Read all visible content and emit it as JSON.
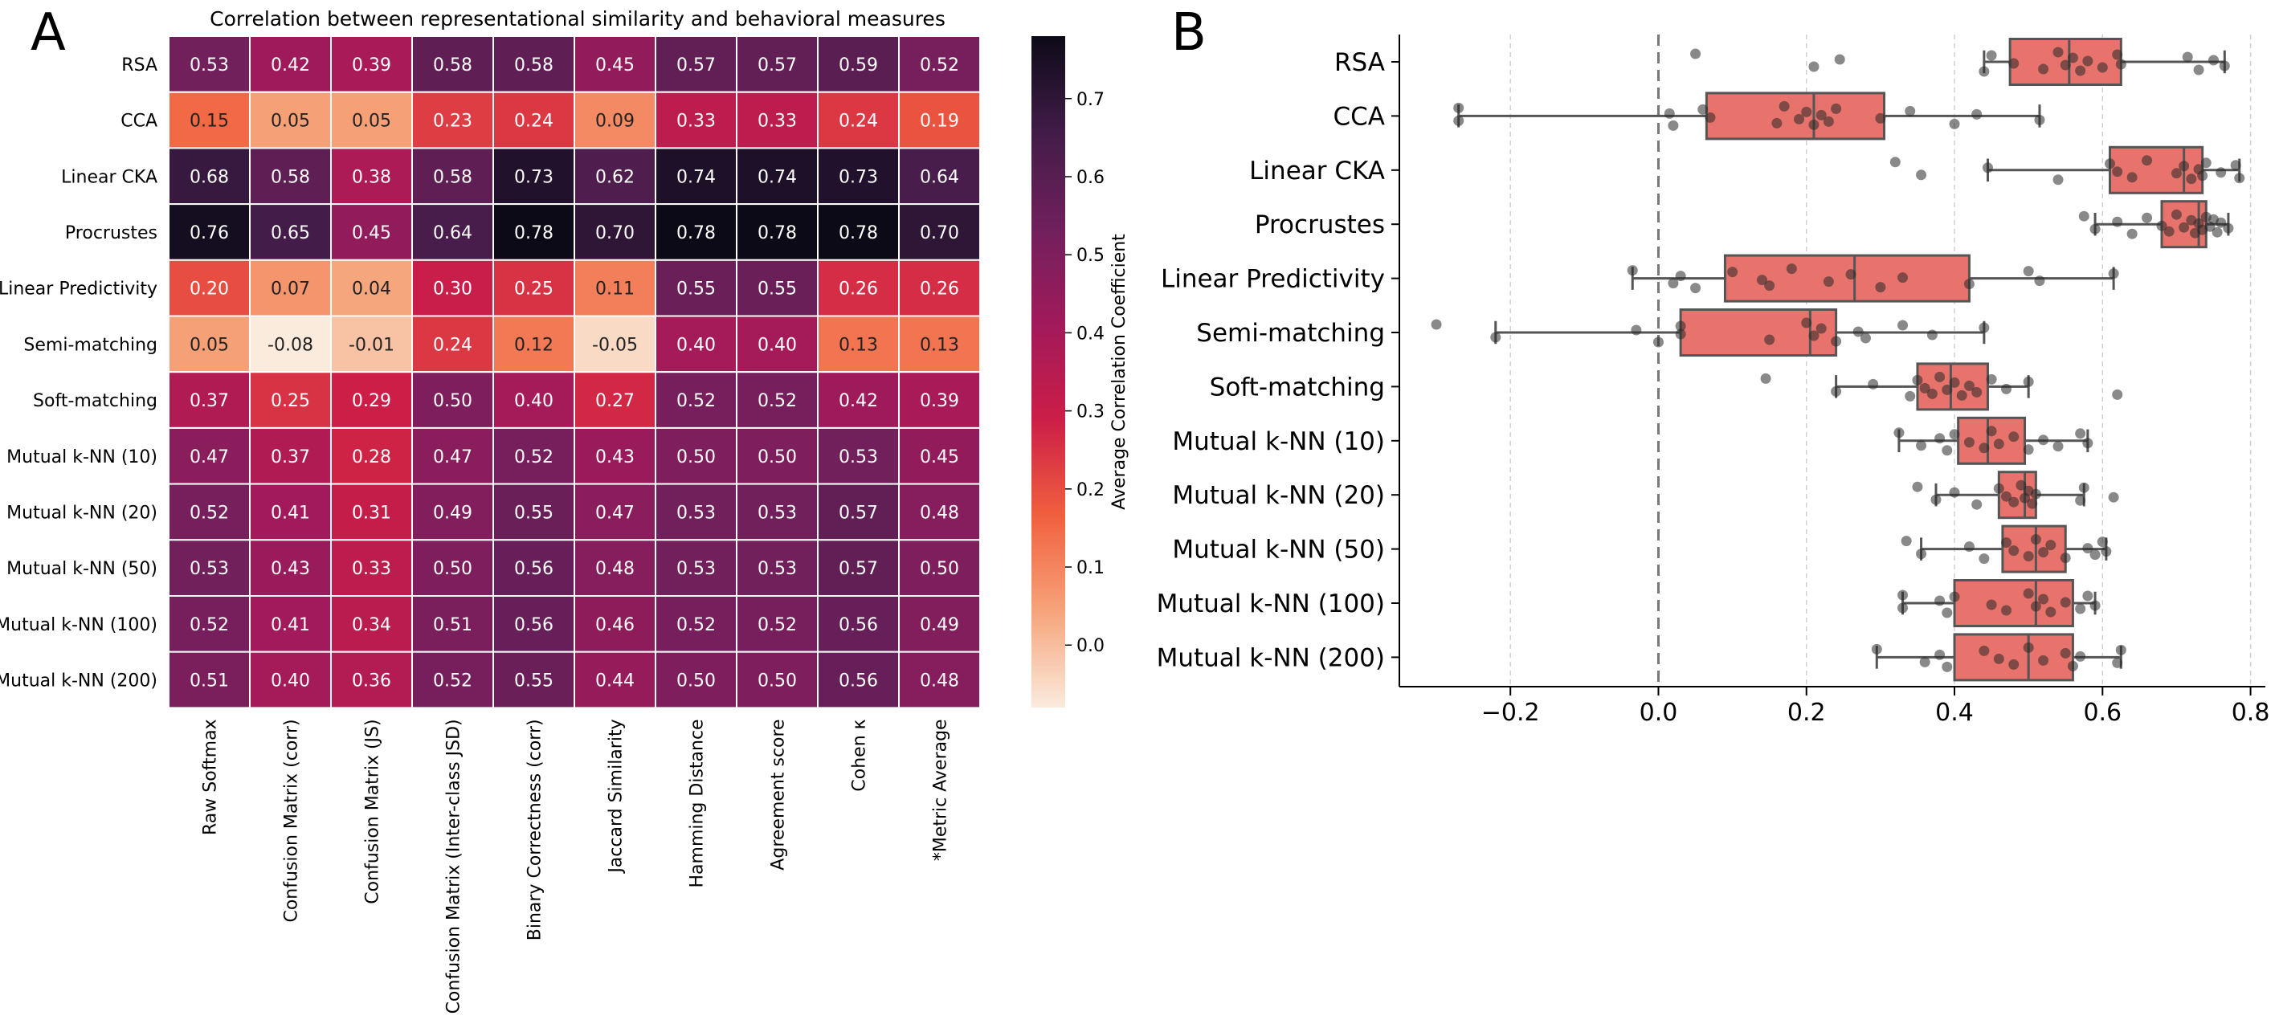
{
  "panels": {
    "a_label": "A",
    "b_label": "B"
  },
  "chart_data": [
    {
      "type": "heatmap",
      "title": "Correlation between representational similarity and behavioral measures",
      "rows": [
        "RSA",
        "CCA",
        "Linear CKA",
        "Procrustes",
        "Linear Predictivity",
        "Semi-matching",
        "Soft-matching",
        "Mutual k-NN (10)",
        "Mutual k-NN (20)",
        "Mutual k-NN (50)",
        "Mutual k-NN (100)",
        "Mutual k-NN (200)"
      ],
      "columns": [
        "Raw Softmax",
        "Confusion Matrix (corr)",
        "Confusion Matrix (JS)",
        "Confusion Matrix (Inter-class JSD)",
        "Binary Correctness (corr)",
        "Jaccard Similarity",
        "Hamming Distance",
        "Agreement score",
        "Cohen κ",
        "*Metric Average"
      ],
      "values": [
        [
          "0.53",
          "0.42",
          "0.39",
          "0.58",
          "0.58",
          "0.45",
          "0.57",
          "0.57",
          "0.59",
          "0.52"
        ],
        [
          "0.15",
          "0.05",
          "0.05",
          "0.23",
          "0.24",
          "0.09",
          "0.33",
          "0.33",
          "0.24",
          "0.19"
        ],
        [
          "0.68",
          "0.58",
          "0.38",
          "0.58",
          "0.73",
          "0.62",
          "0.74",
          "0.74",
          "0.73",
          "0.64"
        ],
        [
          "0.76",
          "0.65",
          "0.45",
          "0.64",
          "0.78",
          "0.70",
          "0.78",
          "0.78",
          "0.78",
          "0.70"
        ],
        [
          "0.20",
          "0.07",
          "0.04",
          "0.30",
          "0.25",
          "0.11",
          "0.55",
          "0.55",
          "0.26",
          "0.26"
        ],
        [
          "0.05",
          "-0.08",
          "-0.01",
          "0.24",
          "0.12",
          "-0.05",
          "0.40",
          "0.40",
          "0.13",
          "0.13"
        ],
        [
          "0.37",
          "0.25",
          "0.29",
          "0.50",
          "0.40",
          "0.27",
          "0.52",
          "0.52",
          "0.42",
          "0.39"
        ],
        [
          "0.47",
          "0.37",
          "0.28",
          "0.47",
          "0.52",
          "0.43",
          "0.50",
          "0.50",
          "0.53",
          "0.45"
        ],
        [
          "0.52",
          "0.41",
          "0.31",
          "0.49",
          "0.55",
          "0.47",
          "0.53",
          "0.53",
          "0.57",
          "0.48"
        ],
        [
          "0.53",
          "0.43",
          "0.33",
          "0.50",
          "0.56",
          "0.48",
          "0.53",
          "0.53",
          "0.57",
          "0.50"
        ],
        [
          "0.52",
          "0.41",
          "0.34",
          "0.51",
          "0.56",
          "0.46",
          "0.52",
          "0.52",
          "0.56",
          "0.49"
        ],
        [
          "0.51",
          "0.40",
          "0.36",
          "0.52",
          "0.55",
          "0.44",
          "0.50",
          "0.50",
          "0.56",
          "0.48"
        ]
      ],
      "colorbar": {
        "label": "Average Correlation Coefficient",
        "range": [
          -0.08,
          0.78
        ],
        "ticks": [
          "0.0",
          "0.1",
          "0.2",
          "0.3",
          "0.4",
          "0.5",
          "0.6",
          "0.7"
        ],
        "colors": [
          "#faebdd",
          "#f6a47b",
          "#f1603e",
          "#cc1e47",
          "#a11a5b",
          "#70205c",
          "#411c48",
          "#0d0a18"
        ]
      }
    },
    {
      "type": "box",
      "categories": [
        "RSA",
        "CCA",
        "Linear CKA",
        "Procrustes",
        "Linear Predictivity",
        "Semi-matching",
        "Soft-matching",
        "Mutual k-NN (10)",
        "Mutual k-NN (20)",
        "Mutual k-NN (50)",
        "Mutual k-NN (100)",
        "Mutual k-NN (200)"
      ],
      "xlim": [
        -0.35,
        0.82
      ],
      "xticks": [
        "−0.2",
        "0.0",
        "0.2",
        "0.4",
        "0.6",
        "0.8"
      ],
      "xtick_values": [
        -0.2,
        0.0,
        0.2,
        0.4,
        0.6,
        0.8
      ],
      "reference_line": 0.0,
      "box_color": "#e8736c",
      "boxes": [
        {
          "whisker_low": 0.44,
          "q1": 0.475,
          "median": 0.555,
          "q3": 0.625,
          "whisker_high": 0.765
        },
        {
          "whisker_low": -0.27,
          "q1": 0.065,
          "median": 0.21,
          "q3": 0.305,
          "whisker_high": 0.515
        },
        {
          "whisker_low": 0.445,
          "q1": 0.61,
          "median": 0.71,
          "q3": 0.735,
          "whisker_high": 0.785
        },
        {
          "whisker_low": 0.59,
          "q1": 0.68,
          "median": 0.73,
          "q3": 0.74,
          "whisker_high": 0.77
        },
        {
          "whisker_low": -0.035,
          "q1": 0.09,
          "median": 0.265,
          "q3": 0.42,
          "whisker_high": 0.615
        },
        {
          "whisker_low": -0.22,
          "q1": 0.03,
          "median": 0.205,
          "q3": 0.24,
          "whisker_high": 0.44
        },
        {
          "whisker_low": 0.24,
          "q1": 0.35,
          "median": 0.395,
          "q3": 0.445,
          "whisker_high": 0.5
        },
        {
          "whisker_low": 0.325,
          "q1": 0.405,
          "median": 0.445,
          "q3": 0.495,
          "whisker_high": 0.58
        },
        {
          "whisker_low": 0.375,
          "q1": 0.46,
          "median": 0.495,
          "q3": 0.51,
          "whisker_high": 0.575
        },
        {
          "whisker_low": 0.355,
          "q1": 0.465,
          "median": 0.51,
          "q3": 0.55,
          "whisker_high": 0.605
        },
        {
          "whisker_low": 0.33,
          "q1": 0.4,
          "median": 0.51,
          "q3": 0.56,
          "whisker_high": 0.59
        },
        {
          "whisker_low": 0.295,
          "q1": 0.4,
          "median": 0.5,
          "q3": 0.56,
          "whisker_high": 0.625
        }
      ],
      "points": [
        [
          0.05,
          0.21,
          0.245,
          0.44,
          0.45,
          0.48,
          0.52,
          0.54,
          0.55,
          0.56,
          0.57,
          0.58,
          0.6,
          0.62,
          0.625,
          0.715,
          0.73,
          0.75,
          0.765
        ],
        [
          -0.27,
          -0.27,
          0.015,
          0.02,
          0.06,
          0.07,
          0.16,
          0.17,
          0.19,
          0.2,
          0.21,
          0.22,
          0.23,
          0.24,
          0.3,
          0.34,
          0.4,
          0.43,
          0.515
        ],
        [
          0.32,
          0.355,
          0.445,
          0.54,
          0.61,
          0.62,
          0.64,
          0.66,
          0.7,
          0.71,
          0.72,
          0.73,
          0.735,
          0.74,
          0.76,
          0.78,
          0.785
        ],
        [
          0.575,
          0.59,
          0.62,
          0.64,
          0.66,
          0.68,
          0.69,
          0.7,
          0.71,
          0.72,
          0.725,
          0.73,
          0.735,
          0.74,
          0.745,
          0.75,
          0.755,
          0.76,
          0.77
        ],
        [
          -0.035,
          0.02,
          0.03,
          0.05,
          0.1,
          0.14,
          0.15,
          0.18,
          0.23,
          0.26,
          0.3,
          0.33,
          0.42,
          0.5,
          0.515,
          0.615
        ],
        [
          -0.3,
          -0.22,
          -0.03,
          0.0,
          0.03,
          0.03,
          0.15,
          0.2,
          0.21,
          0.22,
          0.24,
          0.27,
          0.28,
          0.33,
          0.37,
          0.44
        ],
        [
          0.145,
          0.24,
          0.29,
          0.34,
          0.35,
          0.36,
          0.37,
          0.38,
          0.39,
          0.4,
          0.41,
          0.42,
          0.43,
          0.45,
          0.47,
          0.5,
          0.62
        ],
        [
          0.325,
          0.355,
          0.38,
          0.39,
          0.4,
          0.42,
          0.44,
          0.45,
          0.46,
          0.48,
          0.5,
          0.52,
          0.54,
          0.57,
          0.58
        ],
        [
          0.35,
          0.375,
          0.4,
          0.43,
          0.46,
          0.47,
          0.48,
          0.49,
          0.495,
          0.5,
          0.505,
          0.51,
          0.57,
          0.575,
          0.615
        ],
        [
          0.335,
          0.355,
          0.42,
          0.44,
          0.47,
          0.48,
          0.5,
          0.51,
          0.52,
          0.53,
          0.55,
          0.58,
          0.59,
          0.6,
          0.605
        ],
        [
          0.33,
          0.33,
          0.38,
          0.39,
          0.4,
          0.45,
          0.47,
          0.5,
          0.51,
          0.52,
          0.53,
          0.55,
          0.57,
          0.58,
          0.59
        ],
        [
          0.295,
          0.36,
          0.38,
          0.39,
          0.44,
          0.46,
          0.48,
          0.5,
          0.52,
          0.55,
          0.56,
          0.57,
          0.62,
          0.625
        ]
      ]
    }
  ]
}
